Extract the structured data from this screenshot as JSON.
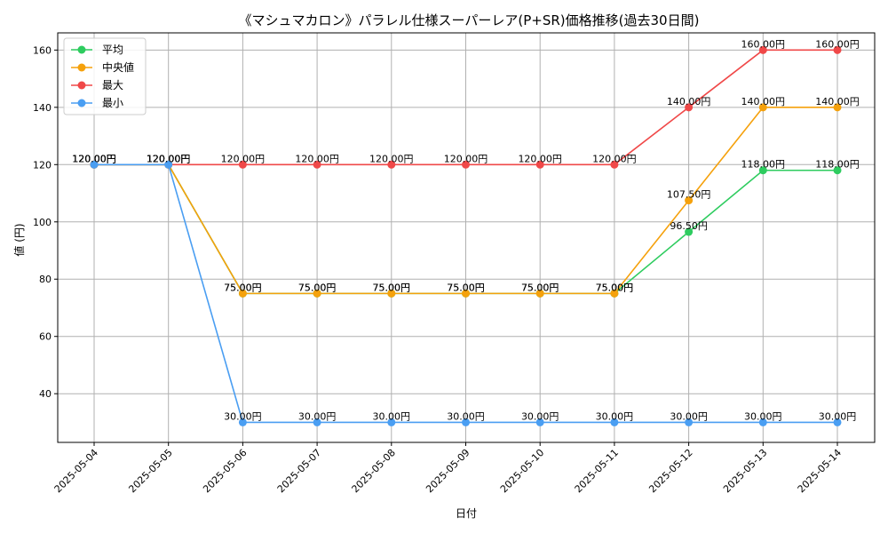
{
  "chart_data": {
    "type": "line",
    "title": "《マシュマカロン》パラレル仕様スーパーレア(P+SR)価格推移(過去30日間)",
    "xlabel": "日付",
    "ylabel": "値 (円)",
    "categories": [
      "2025-05-04",
      "2025-05-05",
      "2025-05-06",
      "2025-05-07",
      "2025-05-08",
      "2025-05-09",
      "2025-05-10",
      "2025-05-11",
      "2025-05-12",
      "2025-05-13",
      "2025-05-14"
    ],
    "ylim": [
      23,
      166
    ],
    "yticks": [
      40,
      60,
      80,
      100,
      120,
      140,
      160
    ],
    "grid": true,
    "legend_position": "top-left",
    "unit_suffix": "円",
    "series": [
      {
        "name": "平均",
        "color": "#2ecc5f",
        "values": [
          120,
          120,
          75,
          75,
          75,
          75,
          75,
          75,
          96.5,
          118,
          118
        ]
      },
      {
        "name": "中央値",
        "color": "#f5a10c",
        "values": [
          120,
          120,
          75,
          75,
          75,
          75,
          75,
          75,
          107.5,
          140,
          140
        ]
      },
      {
        "name": "最大",
        "color": "#f04848",
        "values": [
          120,
          120,
          120,
          120,
          120,
          120,
          120,
          120,
          140,
          160,
          160
        ]
      },
      {
        "name": "最小",
        "color": "#4a9ef2",
        "values": [
          120,
          120,
          30,
          30,
          30,
          30,
          30,
          30,
          30,
          30,
          30
        ]
      }
    ]
  }
}
